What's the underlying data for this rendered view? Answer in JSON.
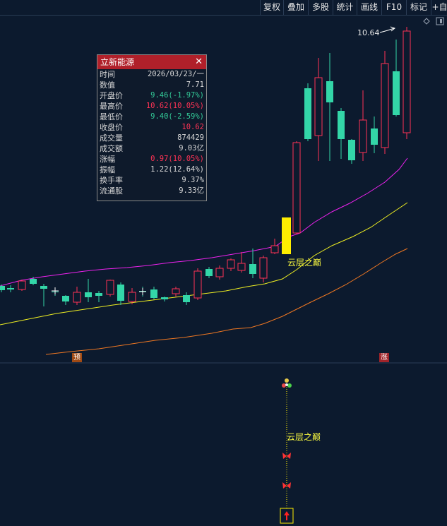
{
  "toolbar": {
    "items": [
      "复权",
      "叠加",
      "多股",
      "统计",
      "画线",
      "F10",
      "标记",
      "+自"
    ]
  },
  "tooltip": {
    "title": "立新能源",
    "rows": [
      {
        "label": "时间",
        "value": "2026/03/23/一",
        "color": "#d8d8d8"
      },
      {
        "label": "数值",
        "value": "7.71",
        "color": "#d8d8d8"
      },
      {
        "label": "开盘价",
        "value": "9.46(-1.97%)",
        "color": "#33cc99"
      },
      {
        "label": "最高价",
        "value": "10.62(10.05%)",
        "color": "#ff3355"
      },
      {
        "label": "最低价",
        "value": "9.40(-2.59%)",
        "color": "#33cc99"
      },
      {
        "label": "收盘价",
        "value": "10.62",
        "color": "#ff3355"
      },
      {
        "label": "成交量",
        "value": "874429",
        "color": "#d8d8d8"
      },
      {
        "label": "成交额",
        "value": "9.03亿",
        "color": "#d8d8d8"
      },
      {
        "label": "涨幅",
        "value": "0.97(10.05%)",
        "color": "#ff3355"
      },
      {
        "label": "振幅",
        "value": "1.22(12.64%)",
        "color": "#d8d8d8"
      },
      {
        "label": "换手率",
        "value": "9.37%",
        "color": "#d8d8d8"
      },
      {
        "label": "流通股",
        "value": "9.33亿",
        "color": "#d8d8d8"
      }
    ]
  },
  "chart": {
    "high_label": "10.64",
    "signal_label": "云层之巅",
    "marker_yu": "预",
    "marker_zhang": "涨",
    "colors": {
      "up": "#ff3355",
      "down": "#33d6a8",
      "ma_short": "#ee22ee",
      "ma_mid": "#eeee22",
      "ma_long": "#ee7722",
      "signal": "#ffee00"
    }
  },
  "indicator": {
    "signal_label": "云层之巅"
  }
}
